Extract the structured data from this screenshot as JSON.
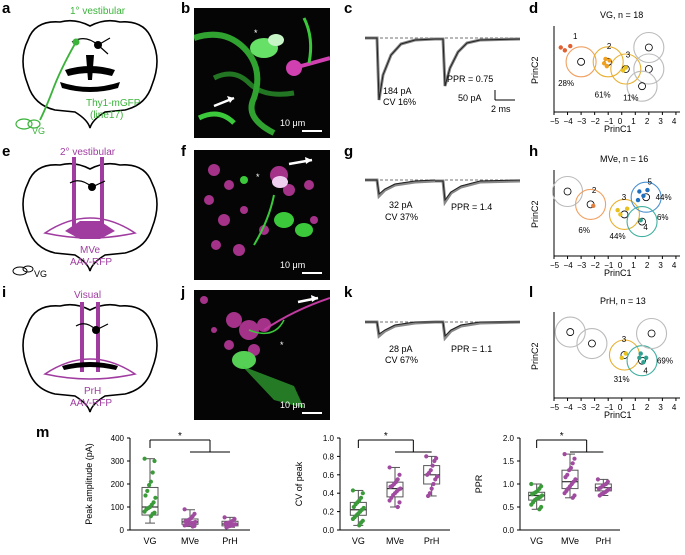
{
  "panel_labels": {
    "a": "a",
    "b": "b",
    "c": "c",
    "d": "d",
    "e": "e",
    "f": "f",
    "g": "g",
    "h": "h",
    "i": "i",
    "j": "j",
    "k": "k",
    "l": "l",
    "m": "m"
  },
  "schematic": {
    "a": {
      "top": "1° vestibular",
      "line1": "Thy1-mGFP",
      "line2": "(line17)",
      "vg": "VG"
    },
    "e": {
      "top": "2° vestibular",
      "region": "MVe",
      "virus": "AAV-RFP",
      "vg": "VG"
    },
    "i": {
      "top": "Visual",
      "region": "PrH",
      "virus": "AAV-RFP"
    }
  },
  "micrographs": {
    "b": "10 μm",
    "f": "10 μm",
    "j": "10 μm",
    "b_star": "*",
    "f_star": "*",
    "j_star": "*"
  },
  "traces": {
    "c": {
      "amp": "184 pA",
      "cv": "CV 16%",
      "ppr": "PPR = 0.75",
      "scale_y": "50 pA",
      "scale_x": "2 ms"
    },
    "g": {
      "amp": "32 pA",
      "cv": "CV 37%",
      "ppr": "PPR = 1.4"
    },
    "k": {
      "amp": "28 pA",
      "cv": "CV 67%",
      "ppr": "PPR = 1.1"
    }
  },
  "pca": {
    "d": {
      "title": "VG, n = 18",
      "ylabel": "PrinC2",
      "xlabel": "PrinC1",
      "pcts": [
        "28%",
        "61%",
        "11%"
      ],
      "nums": [
        "1",
        "2",
        "3"
      ]
    },
    "h": {
      "title": "MVe, n = 16",
      "ylabel": "PrinC2",
      "xlabel": "PrinC1",
      "pcts": [
        "6%",
        "44%",
        "44%",
        "6%"
      ],
      "nums": [
        "2",
        "3",
        "5",
        "4"
      ]
    },
    "l": {
      "title": "PrH, n = 13",
      "ylabel": "PrinC2",
      "xlabel": "PrinC1",
      "pcts": [
        "69%",
        "31%"
      ],
      "nums": [
        "3",
        "4"
      ]
    },
    "ticks": [
      "−5",
      "−4",
      "−3",
      "−2",
      "−1",
      "0",
      "1",
      "2",
      "3",
      "4"
    ]
  },
  "chart_data": [
    {
      "type": "box",
      "ylabel": "Peak amplitude (pA)",
      "categories": [
        "VG",
        "MVe",
        "PrH"
      ],
      "ylim": [
        0,
        400
      ],
      "yticks": [
        "0",
        "100",
        "200",
        "300",
        "400"
      ],
      "values": [
        [
          310,
          300,
          250,
          210,
          195,
          170,
          150,
          140,
          120,
          110,
          100,
          95,
          90,
          80,
          75,
          70,
          60
        ],
        [
          90,
          70,
          60,
          50,
          45,
          40,
          38,
          35,
          32,
          30,
          28,
          25,
          22,
          20,
          18,
          15
        ],
        [
          55,
          48,
          40,
          35,
          32,
          30,
          28,
          25,
          22,
          20,
          18,
          15,
          12
        ]
      ],
      "box": [
        [
          65,
          100,
          185,
          30,
          310
        ],
        [
          25,
          35,
          48,
          15,
          88
        ],
        [
          18,
          26,
          38,
          12,
          55
        ]
      ],
      "significance": "*",
      "colors": [
        "#3b9b3a",
        "#a04aa0",
        "#a04aa0"
      ]
    },
    {
      "type": "box",
      "ylabel": "CV of peak",
      "categories": [
        "VG",
        "MVe",
        "PrH"
      ],
      "ylim": [
        0,
        1.0
      ],
      "yticks": [
        "0.0",
        "0.2",
        "0.4",
        "0.6",
        "0.8",
        "1.0"
      ],
      "values": [
        [
          0.43,
          0.4,
          0.35,
          0.32,
          0.3,
          0.28,
          0.25,
          0.24,
          0.22,
          0.2,
          0.18,
          0.16,
          0.14,
          0.12,
          0.1,
          0.08,
          0.05
        ],
        [
          0.68,
          0.6,
          0.55,
          0.52,
          0.5,
          0.48,
          0.47,
          0.45,
          0.44,
          0.42,
          0.4,
          0.38,
          0.35,
          0.32,
          0.3,
          0.25
        ],
        [
          0.8,
          0.78,
          0.75,
          0.7,
          0.65,
          0.62,
          0.6,
          0.58,
          0.55,
          0.5,
          0.45,
          0.4,
          0.37
        ]
      ],
      "box": [
        [
          0.16,
          0.22,
          0.3,
          0.05,
          0.43
        ],
        [
          0.36,
          0.45,
          0.52,
          0.25,
          0.68
        ],
        [
          0.5,
          0.6,
          0.7,
          0.37,
          0.8
        ]
      ],
      "significance": "*",
      "colors": [
        "#3b9b3a",
        "#a04aa0",
        "#a04aa0"
      ]
    },
    {
      "type": "box",
      "ylabel": "PPR",
      "categories": [
        "VG",
        "MVe",
        "PrH"
      ],
      "ylim": [
        0,
        2.0
      ],
      "yticks": [
        "0.0",
        "0.5",
        "1.0",
        "1.5",
        "2.0"
      ],
      "values": [
        [
          1.0,
          0.95,
          0.9,
          0.85,
          0.82,
          0.8,
          0.78,
          0.75,
          0.72,
          0.7,
          0.68,
          0.65,
          0.6,
          0.55,
          0.5,
          0.45
        ],
        [
          1.65,
          1.55,
          1.45,
          1.35,
          1.3,
          1.2,
          1.15,
          1.1,
          1.05,
          1.0,
          0.95,
          0.9,
          0.85,
          0.8,
          0.75,
          0.7
        ],
        [
          1.1,
          1.05,
          1.0,
          0.98,
          0.95,
          0.92,
          0.9,
          0.88,
          0.85,
          0.82,
          0.8,
          0.78,
          0.75
        ]
      ],
      "box": [
        [
          0.65,
          0.75,
          0.82,
          0.45,
          1.0
        ],
        [
          0.9,
          1.05,
          1.3,
          0.7,
          1.65
        ],
        [
          0.85,
          0.92,
          1.0,
          0.75,
          1.1
        ]
      ],
      "significance": "*",
      "colors": [
        "#3b9b3a",
        "#a04aa0",
        "#a04aa0"
      ]
    }
  ]
}
